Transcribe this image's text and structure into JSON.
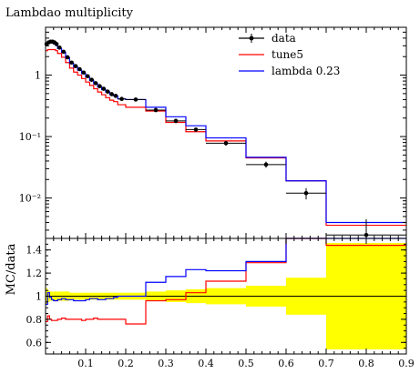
{
  "chart_data": [
    {
      "type": "line",
      "panel": "main",
      "title": "Lambdao multiplicity",
      "xlabel": "",
      "ylabel": "",
      "yscale": "log",
      "xlim": [
        0,
        0.9
      ],
      "ylim": [
        0.0022,
        6.0
      ],
      "grid": false,
      "legend_position": "top-right",
      "yticks": [
        {
          "value": 1,
          "label": "1"
        },
        {
          "value": 0.1,
          "label": "10⁻¹"
        },
        {
          "value": 0.01,
          "label": "10⁻²"
        }
      ],
      "bin_edges": [
        0,
        0.005,
        0.01,
        0.015,
        0.02,
        0.025,
        0.03,
        0.04,
        0.05,
        0.06,
        0.07,
        0.08,
        0.09,
        0.1,
        0.11,
        0.12,
        0.13,
        0.14,
        0.15,
        0.16,
        0.17,
        0.18,
        0.2,
        0.25,
        0.3,
        0.35,
        0.4,
        0.5,
        0.6,
        0.7,
        0.9
      ],
      "series": [
        {
          "name": "data",
          "color": "#000000",
          "style": "points-with-errorbars",
          "values": [
            3.2,
            3.4,
            3.5,
            3.5,
            3.4,
            3.2,
            2.8,
            2.4,
            1.95,
            1.6,
            1.4,
            1.25,
            1.1,
            0.96,
            0.84,
            0.74,
            0.66,
            0.6,
            0.54,
            0.49,
            0.46,
            0.41,
            0.4,
            0.27,
            0.18,
            0.13,
            0.078,
            0.035,
            0.012,
            0.0025
          ],
          "err_up": [
            3.45,
            3.65,
            3.75,
            3.75,
            3.65,
            3.45,
            3.0,
            2.55,
            2.08,
            1.7,
            1.5,
            1.33,
            1.17,
            1.02,
            0.89,
            0.79,
            0.7,
            0.64,
            0.58,
            0.52,
            0.49,
            0.44,
            0.42,
            0.29,
            0.195,
            0.14,
            0.085,
            0.039,
            0.0145,
            0.0045
          ],
          "err_down": [
            2.95,
            3.15,
            3.25,
            3.25,
            3.15,
            2.95,
            2.6,
            2.25,
            1.82,
            1.5,
            1.3,
            1.17,
            1.03,
            0.9,
            0.79,
            0.69,
            0.62,
            0.56,
            0.5,
            0.46,
            0.43,
            0.38,
            0.38,
            0.25,
            0.165,
            0.12,
            0.071,
            0.031,
            0.0095,
            0.0012
          ]
        },
        {
          "name": "tune5",
          "color": "#ff0000",
          "style": "step",
          "values": [
            2.5,
            2.6,
            2.6,
            2.6,
            2.6,
            2.5,
            2.25,
            1.95,
            1.6,
            1.3,
            1.12,
            1.0,
            0.88,
            0.77,
            0.68,
            0.6,
            0.53,
            0.48,
            0.43,
            0.39,
            0.37,
            0.33,
            0.3,
            0.26,
            0.17,
            0.12,
            0.085,
            0.045,
            0.019,
            0.0036
          ]
        },
        {
          "name": "lambda 0.23",
          "color": "#0000ff",
          "style": "step",
          "values": [
            3.0,
            3.5,
            3.45,
            3.4,
            3.2,
            3.05,
            2.7,
            2.35,
            1.9,
            1.55,
            1.35,
            1.2,
            1.06,
            0.93,
            0.82,
            0.72,
            0.64,
            0.58,
            0.53,
            0.48,
            0.46,
            0.41,
            0.4,
            0.3,
            0.21,
            0.15,
            0.095,
            0.046,
            0.019,
            0.004
          ]
        }
      ]
    },
    {
      "type": "line",
      "panel": "ratio",
      "title": "",
      "xlabel": "",
      "ylabel": "MC/data",
      "yscale": "linear",
      "xlim": [
        0,
        0.9
      ],
      "ylim": [
        0.5,
        1.5
      ],
      "grid": false,
      "reference_line": 1.0,
      "xticks": [
        {
          "value": 0.1,
          "label": "0.1"
        },
        {
          "value": 0.2,
          "label": "0.2"
        },
        {
          "value": 0.3,
          "label": "0.3"
        },
        {
          "value": 0.4,
          "label": "0.4"
        },
        {
          "value": 0.5,
          "label": "0.5"
        },
        {
          "value": 0.6,
          "label": "0.6"
        },
        {
          "value": 0.7,
          "label": "0.7"
        },
        {
          "value": 0.8,
          "label": "0.8"
        },
        {
          "value": 0.9,
          "label": "0.9"
        }
      ],
      "yticks": [
        {
          "value": 0.6,
          "label": "0.6"
        },
        {
          "value": 0.8,
          "label": "0.8"
        },
        {
          "value": 1.0,
          "label": "1"
        },
        {
          "value": 1.2,
          "label": "1.2"
        },
        {
          "value": 1.4,
          "label": "1.4"
        }
      ],
      "bin_edges": [
        0,
        0.005,
        0.01,
        0.015,
        0.02,
        0.025,
        0.03,
        0.04,
        0.05,
        0.06,
        0.07,
        0.08,
        0.09,
        0.1,
        0.11,
        0.12,
        0.13,
        0.14,
        0.15,
        0.16,
        0.17,
        0.18,
        0.2,
        0.25,
        0.3,
        0.35,
        0.4,
        0.5,
        0.6,
        0.7,
        0.9
      ],
      "uncertainty_band": {
        "color": "#ffff00",
        "low": [
          0.93,
          0.95,
          0.96,
          0.96,
          0.96,
          0.96,
          0.96,
          0.96,
          0.96,
          0.97,
          0.97,
          0.97,
          0.97,
          0.97,
          0.97,
          0.97,
          0.97,
          0.97,
          0.97,
          0.97,
          0.97,
          0.97,
          0.97,
          0.96,
          0.95,
          0.94,
          0.93,
          0.91,
          0.84,
          0.54
        ],
        "high": [
          1.07,
          1.05,
          1.04,
          1.04,
          1.04,
          1.04,
          1.04,
          1.04,
          1.04,
          1.03,
          1.03,
          1.03,
          1.03,
          1.03,
          1.03,
          1.03,
          1.03,
          1.03,
          1.03,
          1.03,
          1.03,
          1.03,
          1.03,
          1.04,
          1.05,
          1.06,
          1.07,
          1.09,
          1.16,
          1.46
        ]
      },
      "series": [
        {
          "name": "tune5",
          "color": "#ff0000",
          "style": "step",
          "values": [
            0.78,
            0.83,
            0.8,
            0.79,
            0.79,
            0.79,
            0.8,
            0.81,
            0.8,
            0.8,
            0.8,
            0.8,
            0.79,
            0.8,
            0.8,
            0.81,
            0.8,
            0.8,
            0.8,
            0.8,
            0.8,
            0.8,
            0.76,
            0.96,
            0.97,
            1.03,
            1.13,
            1.29,
            1.6,
            1.44
          ]
        },
        {
          "name": "lambda 0.23",
          "color": "#0000ff",
          "style": "step",
          "values": [
            0.93,
            1.03,
            0.99,
            0.97,
            0.96,
            0.96,
            0.97,
            0.98,
            0.97,
            0.97,
            0.96,
            0.96,
            0.96,
            0.97,
            0.98,
            0.98,
            0.97,
            0.97,
            0.98,
            0.98,
            0.99,
            1.0,
            1.0,
            1.12,
            1.17,
            1.23,
            1.22,
            1.3,
            1.6,
            1.6
          ]
        }
      ]
    }
  ]
}
